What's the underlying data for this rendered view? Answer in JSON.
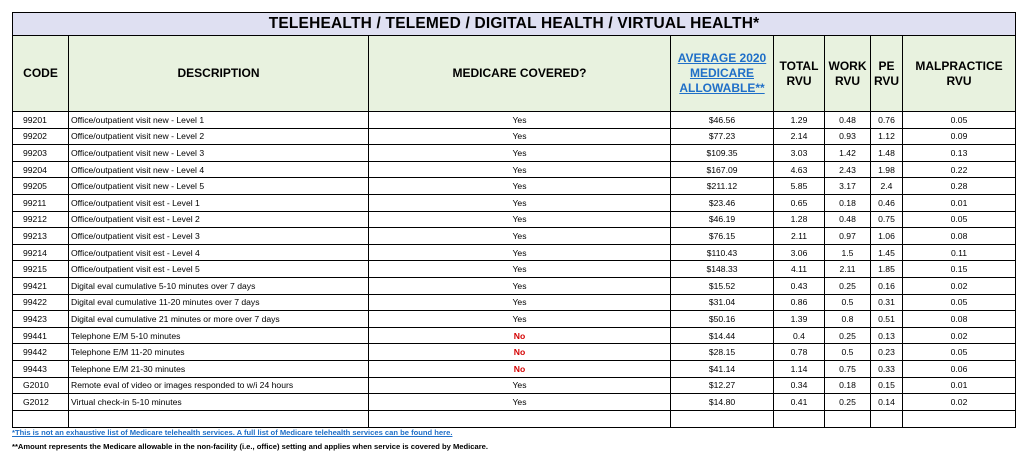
{
  "title": "TELEHEALTH / TELEMED / DIGITAL HEALTH / VIRTUAL HEALTH*",
  "headers": {
    "code": "CODE",
    "description": "DESCRIPTION",
    "covered": "MEDICARE COVERED?",
    "allowable": "AVERAGE 2020 MEDICARE ALLOWABLE**",
    "total": "TOTAL RVU",
    "work": "WORK RVU",
    "pe": "PE RVU",
    "malpractice": "MALPRACTICE RVU"
  },
  "rows": [
    {
      "code": "99201",
      "desc": "Office/outpatient visit new - Level 1",
      "covered": "Yes",
      "allowable": "$46.56",
      "total": "1.29",
      "work": "0.48",
      "pe": "0.76",
      "mal": "0.05"
    },
    {
      "code": "99202",
      "desc": "Office/outpatient visit new - Level 2",
      "covered": "Yes",
      "allowable": "$77.23",
      "total": "2.14",
      "work": "0.93",
      "pe": "1.12",
      "mal": "0.09"
    },
    {
      "code": "99203",
      "desc": "Office/outpatient visit new - Level 3",
      "covered": "Yes",
      "allowable": "$109.35",
      "total": "3.03",
      "work": "1.42",
      "pe": "1.48",
      "mal": "0.13"
    },
    {
      "code": "99204",
      "desc": "Office/outpatient visit new - Level 4",
      "covered": "Yes",
      "allowable": "$167.09",
      "total": "4.63",
      "work": "2.43",
      "pe": "1.98",
      "mal": "0.22"
    },
    {
      "code": "99205",
      "desc": "Office/outpatient visit new - Level 5",
      "covered": "Yes",
      "allowable": "$211.12",
      "total": "5.85",
      "work": "3.17",
      "pe": "2.4",
      "mal": "0.28"
    },
    {
      "code": "99211",
      "desc": "Office/outpatient visit est - Level 1",
      "covered": "Yes",
      "allowable": "$23.46",
      "total": "0.65",
      "work": "0.18",
      "pe": "0.46",
      "mal": "0.01"
    },
    {
      "code": "99212",
      "desc": "Office/outpatient visit est - Level 2",
      "covered": "Yes",
      "allowable": "$46.19",
      "total": "1.28",
      "work": "0.48",
      "pe": "0.75",
      "mal": "0.05"
    },
    {
      "code": "99213",
      "desc": "Office/outpatient visit est - Level 3",
      "covered": "Yes",
      "allowable": "$76.15",
      "total": "2.11",
      "work": "0.97",
      "pe": "1.06",
      "mal": "0.08"
    },
    {
      "code": "99214",
      "desc": "Office/outpatient visit est - Level 4",
      "covered": "Yes",
      "allowable": "$110.43",
      "total": "3.06",
      "work": "1.5",
      "pe": "1.45",
      "mal": "0.11"
    },
    {
      "code": "99215",
      "desc": "Office/outpatient visit est - Level 5",
      "covered": "Yes",
      "allowable": "$148.33",
      "total": "4.11",
      "work": "2.11",
      "pe": "1.85",
      "mal": "0.15"
    },
    {
      "code": "99421",
      "desc": "Digital eval cumulative 5-10 minutes over 7 days",
      "covered": "Yes",
      "allowable": "$15.52",
      "total": "0.43",
      "work": "0.25",
      "pe": "0.16",
      "mal": "0.02"
    },
    {
      "code": "99422",
      "desc": "Digital eval cumulative 11-20 minutes over 7 days",
      "covered": "Yes",
      "allowable": "$31.04",
      "total": "0.86",
      "work": "0.5",
      "pe": "0.31",
      "mal": "0.05"
    },
    {
      "code": "99423",
      "desc": "Digital eval cumulative 21 minutes or more over 7 days",
      "covered": "Yes",
      "allowable": "$50.16",
      "total": "1.39",
      "work": "0.8",
      "pe": "0.51",
      "mal": "0.08"
    },
    {
      "code": "99441",
      "desc": "Telephone E/M 5-10 minutes",
      "covered": "No",
      "allowable": "$14.44",
      "total": "0.4",
      "work": "0.25",
      "pe": "0.13",
      "mal": "0.02"
    },
    {
      "code": "99442",
      "desc": "Telephone E/M 11-20 minutes",
      "covered": "No",
      "allowable": "$28.15",
      "total": "0.78",
      "work": "0.5",
      "pe": "0.23",
      "mal": "0.05"
    },
    {
      "code": "99443",
      "desc": "Telephone E/M 21-30 minutes",
      "covered": "No",
      "allowable": "$41.14",
      "total": "1.14",
      "work": "0.75",
      "pe": "0.33",
      "mal": "0.06"
    },
    {
      "code": "G2010",
      "desc": "Remote eval of video or images responded to w/i 24 hours",
      "covered": "Yes",
      "allowable": "$12.27",
      "total": "0.34",
      "work": "0.18",
      "pe": "0.15",
      "mal": "0.01"
    },
    {
      "code": "G2012",
      "desc": "Virtual check-in 5-10 minutes",
      "covered": "Yes",
      "allowable": "$14.80",
      "total": "0.41",
      "work": "0.25",
      "pe": "0.14",
      "mal": "0.02"
    }
  ],
  "notes": {
    "note1": "*This is not an exhaustive list of Medicare telehealth services. A full list of Medicare telehealth services can be found here.",
    "note2": "**Amount represents the Medicare allowable in the non-facility (i.e., office) setting and applies when service is covered by Medicare."
  },
  "colors": {
    "title_bg": "#dfe0f2",
    "header_bg": "#e8f2df",
    "link": "#1f6fc8",
    "no": "#d40000"
  }
}
